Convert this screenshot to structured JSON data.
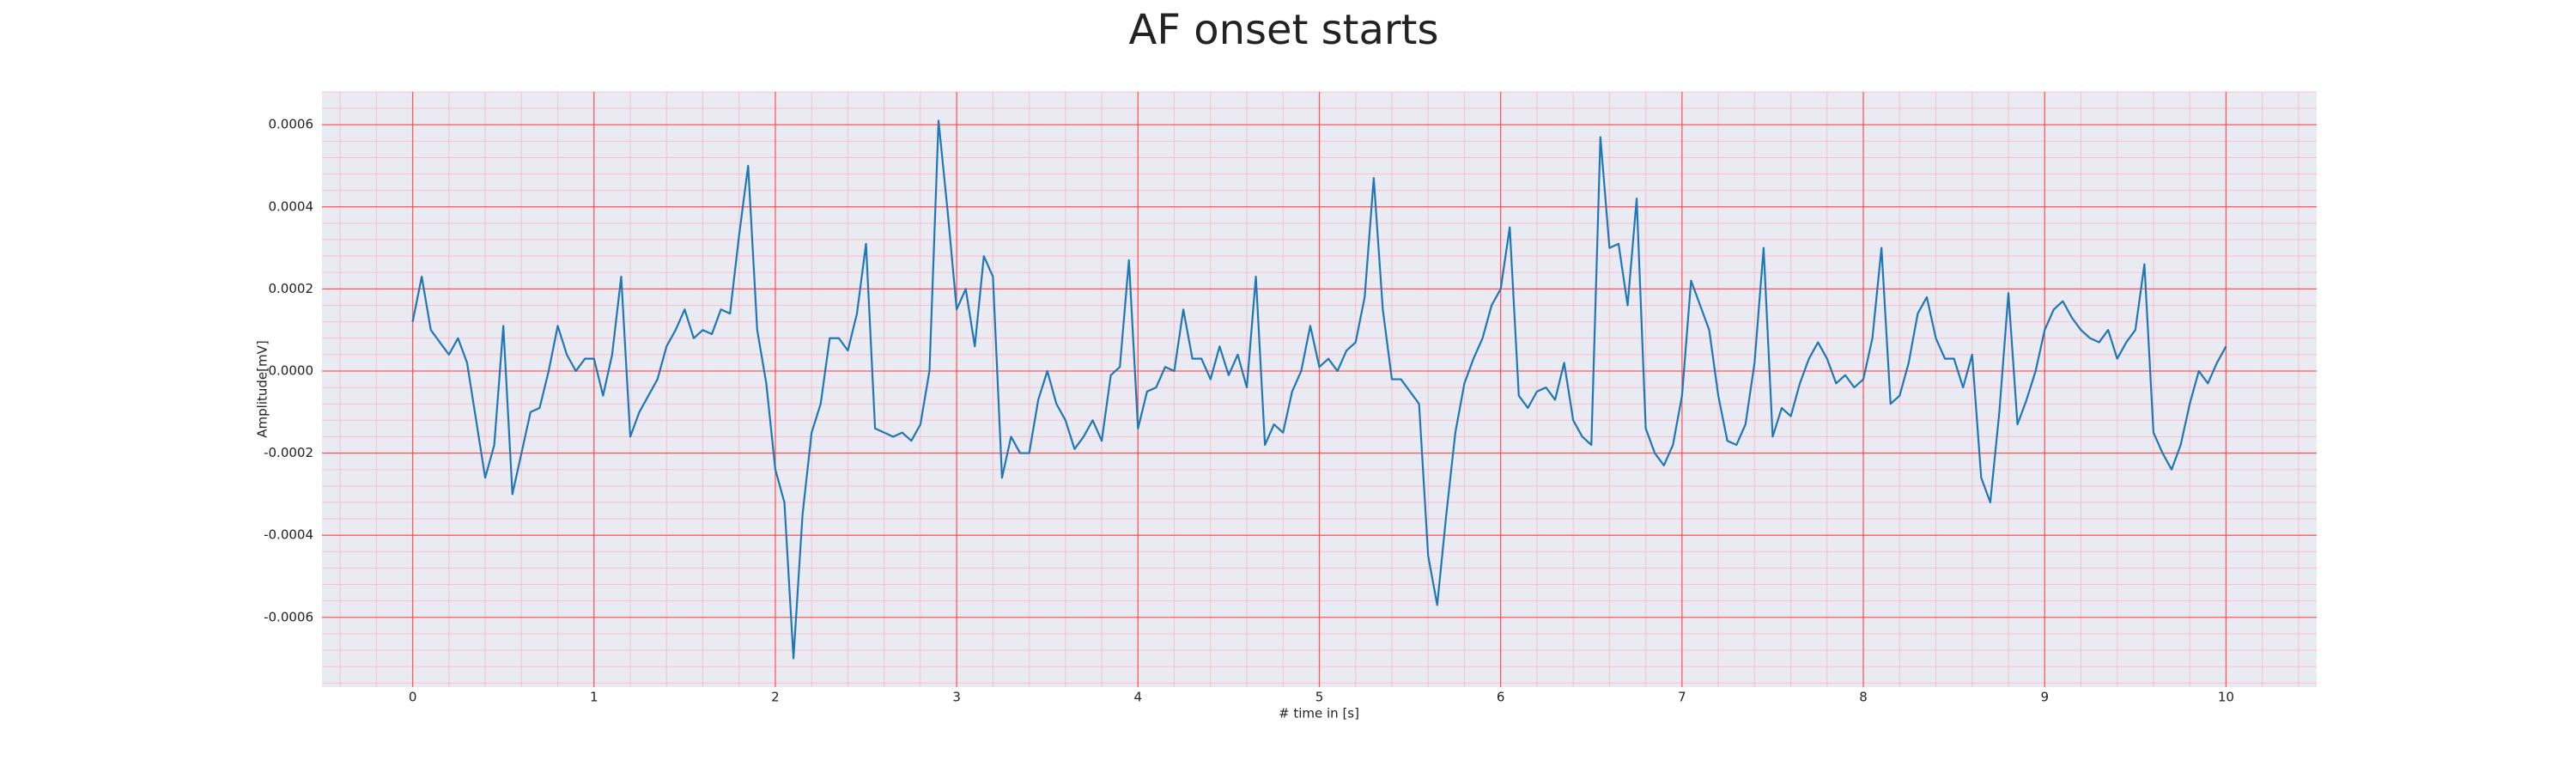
{
  "chart_data": {
    "type": "line",
    "title": "AF onset starts",
    "xlabel": "# time in [s]",
    "ylabel": "Amplitude[mV]",
    "x": [
      0,
      0.05,
      0.1,
      0.15,
      0.2,
      0.25,
      0.3,
      0.35,
      0.4,
      0.45,
      0.5,
      0.55,
      0.6,
      0.65,
      0.7,
      0.75,
      0.8,
      0.85,
      0.9,
      0.95,
      1,
      1.05,
      1.1,
      1.15,
      1.2,
      1.25,
      1.3,
      1.35,
      1.4,
      1.45,
      1.5,
      1.55,
      1.6,
      1.65,
      1.7,
      1.75,
      1.8,
      1.85,
      1.9,
      1.95,
      2,
      2.05,
      2.1,
      2.15,
      2.2,
      2.25,
      2.3,
      2.35,
      2.4,
      2.45,
      2.5,
      2.55,
      2.6,
      2.65,
      2.7,
      2.75,
      2.8,
      2.85,
      2.9,
      2.95,
      3,
      3.05,
      3.1,
      3.15,
      3.2,
      3.25,
      3.3,
      3.35,
      3.4,
      3.45,
      3.5,
      3.55,
      3.6,
      3.65,
      3.7,
      3.75,
      3.8,
      3.85,
      3.9,
      3.95,
      4,
      4.05,
      4.1,
      4.15,
      4.2,
      4.25,
      4.3,
      4.35,
      4.4,
      4.45,
      4.5,
      4.55,
      4.6,
      4.65,
      4.7,
      4.75,
      4.8,
      4.85,
      4.9,
      4.95,
      5,
      5.05,
      5.1,
      5.15,
      5.2,
      5.25,
      5.3,
      5.35,
      5.4,
      5.45,
      5.5,
      5.55,
      5.6,
      5.65,
      5.7,
      5.75,
      5.8,
      5.85,
      5.9,
      5.95,
      6,
      6.05,
      6.1,
      6.15,
      6.2,
      6.25,
      6.3,
      6.35,
      6.4,
      6.45,
      6.5,
      6.55,
      6.6,
      6.65,
      6.7,
      6.75,
      6.8,
      6.85,
      6.9,
      6.95,
      7,
      7.05,
      7.1,
      7.15,
      7.2,
      7.25,
      7.3,
      7.35,
      7.4,
      7.45,
      7.5,
      7.55,
      7.6,
      7.65,
      7.7,
      7.75,
      7.8,
      7.85,
      7.9,
      7.95,
      8,
      8.05,
      8.1,
      8.15,
      8.2,
      8.25,
      8.3,
      8.35,
      8.4,
      8.45,
      8.5,
      8.55,
      8.6,
      8.65,
      8.7,
      8.75,
      8.8,
      8.85,
      8.9,
      8.95,
      9,
      9.05,
      9.1,
      9.15,
      9.2,
      9.25,
      9.3,
      9.35,
      9.4,
      9.45,
      9.5,
      9.55,
      9.6,
      9.65,
      9.7,
      9.75,
      9.8,
      9.85,
      9.9,
      9.95,
      10
    ],
    "series": [
      {
        "name": "Amplitude",
        "color": "#1f77b4",
        "values": [
          0.00012,
          0.00023,
          0.0001,
          7e-05,
          4e-05,
          8e-05,
          2e-05,
          -0.00012,
          -0.00026,
          -0.00018,
          0.00011,
          -0.0003,
          -0.0002,
          -0.0001,
          -9e-05,
          0,
          0.00011,
          4e-05,
          0,
          3e-05,
          3e-05,
          -6e-05,
          4e-05,
          0.00023,
          -0.00016,
          -0.0001,
          -6e-05,
          -2e-05,
          6e-05,
          0.0001,
          0.00015,
          8e-05,
          0.0001,
          9e-05,
          0.00015,
          0.00014,
          0.00033,
          0.0005,
          0.0001,
          -3e-05,
          -0.00024,
          -0.00032,
          -0.0007,
          -0.00035,
          -0.00015,
          -8e-05,
          8e-05,
          8e-05,
          5e-05,
          0.00014,
          0.00031,
          -0.00014,
          -0.00015,
          -0.00016,
          -0.00015,
          -0.00017,
          -0.00013,
          0,
          0.00061,
          0.00039,
          0.00015,
          0.0002,
          6e-05,
          0.00028,
          0.00023,
          -0.00026,
          -0.00016,
          -0.0002,
          -0.0002,
          -7e-05,
          0,
          -8e-05,
          -0.00012,
          -0.00019,
          -0.00016,
          -0.00012,
          -0.00017,
          -1e-05,
          1e-05,
          0.00027,
          -0.00014,
          -5e-05,
          -4e-05,
          1e-05,
          0,
          0.00015,
          3e-05,
          3e-05,
          -2e-05,
          6e-05,
          -1e-05,
          4e-05,
          -4e-05,
          0.00023,
          -0.00018,
          -0.00013,
          -0.00015,
          -5e-05,
          0,
          0.00011,
          1e-05,
          3e-05,
          0,
          5e-05,
          7e-05,
          0.00018,
          0.00047,
          0.00015,
          -2e-05,
          -2e-05,
          -5e-05,
          -8e-05,
          -0.00045,
          -0.00057,
          -0.00035,
          -0.00015,
          -3e-05,
          3e-05,
          8e-05,
          0.00016,
          0.0002,
          0.00035,
          -6e-05,
          -9e-05,
          -5e-05,
          -4e-05,
          -7e-05,
          2e-05,
          -0.00012,
          -0.00016,
          -0.00018,
          0.00057,
          0.0003,
          0.00031,
          0.00016,
          0.00042,
          -0.00014,
          -0.0002,
          -0.00023,
          -0.00018,
          -6e-05,
          0.00022,
          0.00016,
          0.0001,
          -6e-05,
          -0.00017,
          -0.00018,
          -0.00013,
          2e-05,
          0.0003,
          -0.00016,
          -9e-05,
          -0.00011,
          -3e-05,
          3e-05,
          7e-05,
          3e-05,
          -3e-05,
          -1e-05,
          -4e-05,
          -2e-05,
          8e-05,
          0.0003,
          -8e-05,
          -6e-05,
          2e-05,
          0.00014,
          0.00018,
          8e-05,
          3e-05,
          3e-05,
          -4e-05,
          4e-05,
          -0.00026,
          -0.00032,
          -0.0001,
          0.00019,
          -0.00013,
          -7e-05,
          0,
          0.0001,
          0.00015,
          0.00017,
          0.00013,
          0.0001,
          8e-05,
          7e-05,
          0.0001,
          3e-05,
          7e-05,
          0.0001,
          0.00026,
          -0.00015,
          -0.0002,
          -0.00024,
          -0.00018,
          -8e-05,
          0,
          -3e-05,
          2e-05,
          6e-05
        ]
      }
    ],
    "xlim": [
      -0.5,
      10.5
    ],
    "ylim": [
      -0.00077,
      0.00068
    ],
    "xticks": [
      0,
      1,
      2,
      3,
      4,
      5,
      6,
      7,
      8,
      9,
      10
    ],
    "yticks": [
      {
        "value": -0.0006,
        "label": "-0.0006"
      },
      {
        "value": -0.0004,
        "label": "-0.0004"
      },
      {
        "value": -0.0002,
        "label": "-0.0002"
      },
      {
        "value": 0,
        "label": "0.0000"
      },
      {
        "value": 0.0002,
        "label": "0.0002"
      },
      {
        "value": 0.0004,
        "label": "0.0004"
      },
      {
        "value": 0.0006,
        "label": "0.0006"
      }
    ],
    "grid": true,
    "minor_grid": true
  }
}
